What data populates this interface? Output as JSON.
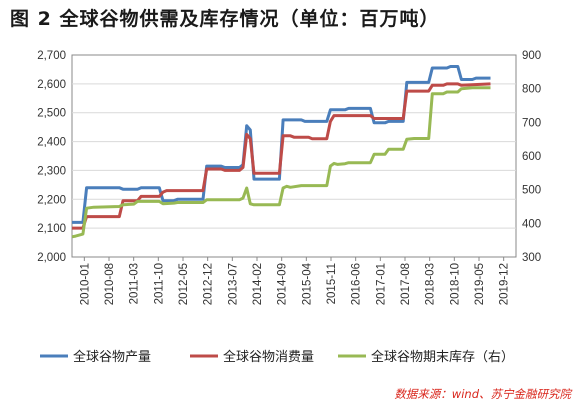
{
  "title": "图 2  全球谷物供需及库存情况（单位：百万吨）",
  "source": "数据来源：wind、苏宁金融研究院",
  "colors": {
    "production": "#4a7ebb",
    "consumption": "#be4b48",
    "stock": "#98b954",
    "axis": "#888888",
    "grid": "#d9d9d9"
  },
  "chart_data": {
    "type": "line",
    "title": "图 2  全球谷物供需及库存情况（单位：百万吨）",
    "x_labels": [
      "2010-01",
      "2010-08",
      "2011-03",
      "2011-10",
      "2012-05",
      "2012-12",
      "2013-07",
      "2014-02",
      "2014-09",
      "2015-04",
      "2015-11",
      "2016-06",
      "2017-01",
      "2017-08",
      "2018-03",
      "2018-10",
      "2019-05",
      "2019-12"
    ],
    "x_range": [
      0,
      122
    ],
    "y_left": {
      "range": [
        2000,
        2700
      ],
      "ticks": [
        "2,000",
        "2,100",
        "2,200",
        "2,300",
        "2,400",
        "2,500",
        "2,600",
        "2,700"
      ],
      "tick_values": [
        2000,
        2100,
        2200,
        2300,
        2400,
        2500,
        2600,
        2700
      ]
    },
    "y_right": {
      "range": [
        300,
        900
      ],
      "ticks": [
        "300",
        "400",
        "500",
        "600",
        "700",
        "800",
        "900"
      ],
      "tick_values": [
        300,
        400,
        500,
        600,
        700,
        800,
        900
      ]
    },
    "grid": "horizontal",
    "legend_position": "bottom",
    "series": [
      {
        "name": "全球谷物产量",
        "axis": "left",
        "color": "#4a7ebb",
        "points": [
          [
            0,
            2120
          ],
          [
            3,
            2120
          ],
          [
            4,
            2240
          ],
          [
            13,
            2240
          ],
          [
            14,
            2235
          ],
          [
            18,
            2235
          ],
          [
            19,
            2240
          ],
          [
            24,
            2240
          ],
          [
            25,
            2195
          ],
          [
            28,
            2195
          ],
          [
            29,
            2200
          ],
          [
            36,
            2200
          ],
          [
            37,
            2315
          ],
          [
            41,
            2315
          ],
          [
            42,
            2310
          ],
          [
            46,
            2310
          ],
          [
            47,
            2320
          ],
          [
            48,
            2455
          ],
          [
            49,
            2440
          ],
          [
            50,
            2270
          ],
          [
            57,
            2270
          ],
          [
            58,
            2475
          ],
          [
            63,
            2475
          ],
          [
            64,
            2470
          ],
          [
            70,
            2470
          ],
          [
            71,
            2510
          ],
          [
            75,
            2510
          ],
          [
            76,
            2515
          ],
          [
            82,
            2515
          ],
          [
            83,
            2465
          ],
          [
            86,
            2465
          ],
          [
            87,
            2470
          ],
          [
            91,
            2470
          ],
          [
            92,
            2605
          ],
          [
            98,
            2605
          ],
          [
            99,
            2655
          ],
          [
            103,
            2655
          ],
          [
            104,
            2660
          ],
          [
            106,
            2660
          ],
          [
            107,
            2615
          ],
          [
            110,
            2615
          ],
          [
            111,
            2620
          ],
          [
            115,
            2620
          ]
        ]
      },
      {
        "name": "全球谷物消费量",
        "axis": "left",
        "color": "#be4b48",
        "points": [
          [
            0,
            2100
          ],
          [
            3,
            2100
          ],
          [
            4,
            2140
          ],
          [
            13,
            2140
          ],
          [
            14,
            2195
          ],
          [
            18,
            2195
          ],
          [
            19,
            2210
          ],
          [
            24,
            2210
          ],
          [
            25,
            2225
          ],
          [
            26,
            2230
          ],
          [
            36,
            2230
          ],
          [
            37,
            2305
          ],
          [
            41,
            2305
          ],
          [
            42,
            2300
          ],
          [
            46,
            2300
          ],
          [
            47,
            2310
          ],
          [
            48,
            2425
          ],
          [
            49,
            2410
          ],
          [
            50,
            2290
          ],
          [
            57,
            2290
          ],
          [
            58,
            2420
          ],
          [
            60,
            2420
          ],
          [
            61,
            2415
          ],
          [
            65,
            2415
          ],
          [
            66,
            2410
          ],
          [
            70,
            2410
          ],
          [
            71,
            2470
          ],
          [
            72,
            2490
          ],
          [
            82,
            2490
          ],
          [
            83,
            2480
          ],
          [
            91,
            2480
          ],
          [
            92,
            2575
          ],
          [
            98,
            2575
          ],
          [
            99,
            2595
          ],
          [
            102,
            2595
          ],
          [
            103,
            2600
          ],
          [
            106,
            2600
          ],
          [
            107,
            2595
          ],
          [
            115,
            2600
          ]
        ]
      },
      {
        "name": "全球谷物期末库存（右）",
        "axis": "right",
        "color": "#98b954",
        "points": [
          [
            0,
            360
          ],
          [
            1,
            362
          ],
          [
            2,
            365
          ],
          [
            3,
            368
          ],
          [
            4,
            445
          ],
          [
            6,
            448
          ],
          [
            13,
            450
          ],
          [
            14,
            455
          ],
          [
            17,
            457
          ],
          [
            18,
            465
          ],
          [
            24,
            465
          ],
          [
            25,
            458
          ],
          [
            28,
            460
          ],
          [
            29,
            462
          ],
          [
            36,
            462
          ],
          [
            37,
            470
          ],
          [
            46,
            470
          ],
          [
            47,
            475
          ],
          [
            48,
            505
          ],
          [
            49,
            458
          ],
          [
            50,
            455
          ],
          [
            57,
            455
          ],
          [
            58,
            505
          ],
          [
            59,
            510
          ],
          [
            60,
            507
          ],
          [
            63,
            512
          ],
          [
            70,
            512
          ],
          [
            71,
            570
          ],
          [
            72,
            578
          ],
          [
            73,
            575
          ],
          [
            75,
            577
          ],
          [
            76,
            580
          ],
          [
            82,
            580
          ],
          [
            83,
            605
          ],
          [
            86,
            605
          ],
          [
            87,
            620
          ],
          [
            91,
            620
          ],
          [
            92,
            650
          ],
          [
            94,
            652
          ],
          [
            98,
            652
          ],
          [
            99,
            785
          ],
          [
            102,
            785
          ],
          [
            103,
            790
          ],
          [
            106,
            790
          ],
          [
            107,
            800
          ],
          [
            110,
            803
          ],
          [
            115,
            803
          ]
        ]
      }
    ]
  }
}
